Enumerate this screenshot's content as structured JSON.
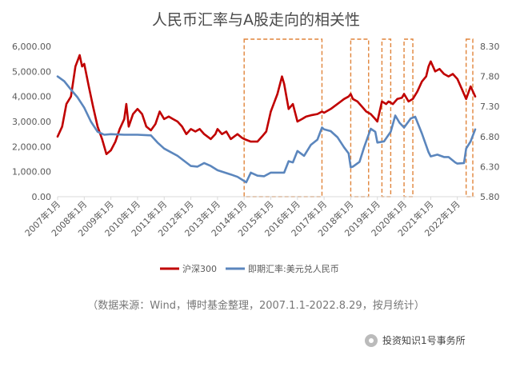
{
  "chart_data": {
    "type": "line",
    "title": "人民币汇率与A股走向的相关性",
    "source_note": "（数据来源：Wind，博时基金整理，2007.1.1-2022.8.29，按月统计）",
    "x_ticks": [
      "2007年1月",
      "2008年1月",
      "2009年1月",
      "2010年1月",
      "2011年1月",
      "2012年1月",
      "2013年1月",
      "2014年1月",
      "2015年1月",
      "2016年1月",
      "2017年1月",
      "2018年1月",
      "2019年1月",
      "2020年1月",
      "2021年1月",
      "2022年1月"
    ],
    "y_left": {
      "ylim": [
        0,
        6000
      ],
      "tick_labels": [
        "0.00",
        "1,000.00",
        "2,000.00",
        "3,000.00",
        "4,000.00",
        "5,000.00",
        "6,000.00"
      ]
    },
    "y_right": {
      "ylim": [
        5.8,
        8.3
      ],
      "tick_labels": [
        "5.80",
        "6.30",
        "6.80",
        "7.30",
        "7.80",
        "8.30"
      ]
    },
    "x_range": [
      2007.0,
      2022.67
    ],
    "series": [
      {
        "name": "沪深300",
        "axis": "left",
        "color": "#c00000",
        "points": [
          [
            2007.0,
            2400
          ],
          [
            2007.17,
            2800
          ],
          [
            2007.33,
            3700
          ],
          [
            2007.5,
            4000
          ],
          [
            2007.67,
            5200
          ],
          [
            2007.83,
            5650
          ],
          [
            2007.92,
            5200
          ],
          [
            2008.0,
            5300
          ],
          [
            2008.17,
            4400
          ],
          [
            2008.33,
            3600
          ],
          [
            2008.5,
            2800
          ],
          [
            2008.67,
            2300
          ],
          [
            2008.83,
            1700
          ],
          [
            2009.0,
            1850
          ],
          [
            2009.17,
            2200
          ],
          [
            2009.33,
            2700
          ],
          [
            2009.5,
            3100
          ],
          [
            2009.58,
            3700
          ],
          [
            2009.67,
            2800
          ],
          [
            2009.83,
            3300
          ],
          [
            2010.0,
            3500
          ],
          [
            2010.17,
            3300
          ],
          [
            2010.33,
            2800
          ],
          [
            2010.5,
            2650
          ],
          [
            2010.67,
            2900
          ],
          [
            2010.83,
            3400
          ],
          [
            2011.0,
            3100
          ],
          [
            2011.17,
            3200
          ],
          [
            2011.33,
            3100
          ],
          [
            2011.5,
            3000
          ],
          [
            2011.67,
            2800
          ],
          [
            2011.83,
            2500
          ],
          [
            2012.0,
            2700
          ],
          [
            2012.17,
            2600
          ],
          [
            2012.33,
            2700
          ],
          [
            2012.5,
            2500
          ],
          [
            2012.75,
            2300
          ],
          [
            2012.92,
            2500
          ],
          [
            2013.0,
            2700
          ],
          [
            2013.17,
            2500
          ],
          [
            2013.33,
            2600
          ],
          [
            2013.5,
            2300
          ],
          [
            2013.75,
            2500
          ],
          [
            2013.92,
            2350
          ],
          [
            2014.0,
            2300
          ],
          [
            2014.25,
            2200
          ],
          [
            2014.5,
            2200
          ],
          [
            2014.67,
            2400
          ],
          [
            2014.83,
            2600
          ],
          [
            2015.0,
            3400
          ],
          [
            2015.25,
            4100
          ],
          [
            2015.42,
            4800
          ],
          [
            2015.5,
            4500
          ],
          [
            2015.67,
            3500
          ],
          [
            2015.83,
            3700
          ],
          [
            2016.0,
            3000
          ],
          [
            2016.17,
            3100
          ],
          [
            2016.33,
            3200
          ],
          [
            2016.5,
            3250
          ],
          [
            2016.75,
            3300
          ],
          [
            2016.92,
            3400
          ],
          [
            2017.0,
            3350
          ],
          [
            2017.25,
            3500
          ],
          [
            2017.5,
            3700
          ],
          [
            2017.75,
            3900
          ],
          [
            2017.92,
            4000
          ],
          [
            2018.0,
            4100
          ],
          [
            2018.08,
            3900
          ],
          [
            2018.25,
            3800
          ],
          [
            2018.42,
            3600
          ],
          [
            2018.58,
            3400
          ],
          [
            2018.75,
            3300
          ],
          [
            2018.92,
            3100
          ],
          [
            2019.0,
            3000
          ],
          [
            2019.17,
            3800
          ],
          [
            2019.33,
            3700
          ],
          [
            2019.42,
            3800
          ],
          [
            2019.58,
            3700
          ],
          [
            2019.75,
            3900
          ],
          [
            2019.92,
            3950
          ],
          [
            2020.0,
            4100
          ],
          [
            2020.17,
            3800
          ],
          [
            2020.33,
            3900
          ],
          [
            2020.5,
            4200
          ],
          [
            2020.67,
            4600
          ],
          [
            2020.83,
            4800
          ],
          [
            2020.92,
            5200
          ],
          [
            2021.0,
            5400
          ],
          [
            2021.17,
            5000
          ],
          [
            2021.33,
            5100
          ],
          [
            2021.5,
            4900
          ],
          [
            2021.67,
            4800
          ],
          [
            2021.83,
            4900
          ],
          [
            2022.0,
            4700
          ],
          [
            2022.17,
            4300
          ],
          [
            2022.33,
            3900
          ],
          [
            2022.5,
            4400
          ],
          [
            2022.67,
            4000
          ]
        ]
      },
      {
        "name": "即期汇率:美元兑人民币",
        "axis": "right",
        "color": "#5b86bd",
        "points": [
          [
            2007.0,
            7.8
          ],
          [
            2007.25,
            7.72
          ],
          [
            2007.5,
            7.58
          ],
          [
            2007.75,
            7.45
          ],
          [
            2008.0,
            7.28
          ],
          [
            2008.25,
            7.05
          ],
          [
            2008.5,
            6.88
          ],
          [
            2008.75,
            6.83
          ],
          [
            2009.0,
            6.84
          ],
          [
            2009.5,
            6.83
          ],
          [
            2010.0,
            6.83
          ],
          [
            2010.5,
            6.82
          ],
          [
            2010.75,
            6.7
          ],
          [
            2011.0,
            6.6
          ],
          [
            2011.5,
            6.48
          ],
          [
            2012.0,
            6.31
          ],
          [
            2012.25,
            6.3
          ],
          [
            2012.5,
            6.36
          ],
          [
            2012.75,
            6.31
          ],
          [
            2013.0,
            6.24
          ],
          [
            2013.5,
            6.17
          ],
          [
            2013.75,
            6.13
          ],
          [
            2014.0,
            6.06
          ],
          [
            2014.08,
            6.04
          ],
          [
            2014.25,
            6.2
          ],
          [
            2014.5,
            6.15
          ],
          [
            2014.75,
            6.14
          ],
          [
            2015.0,
            6.2
          ],
          [
            2015.25,
            6.2
          ],
          [
            2015.5,
            6.2
          ],
          [
            2015.67,
            6.39
          ],
          [
            2015.83,
            6.37
          ],
          [
            2016.0,
            6.56
          ],
          [
            2016.25,
            6.48
          ],
          [
            2016.5,
            6.66
          ],
          [
            2016.75,
            6.75
          ],
          [
            2016.92,
            6.95
          ],
          [
            2017.0,
            6.92
          ],
          [
            2017.25,
            6.89
          ],
          [
            2017.5,
            6.79
          ],
          [
            2017.75,
            6.62
          ],
          [
            2017.92,
            6.52
          ],
          [
            2018.0,
            6.29
          ],
          [
            2018.08,
            6.3
          ],
          [
            2018.33,
            6.38
          ],
          [
            2018.5,
            6.62
          ],
          [
            2018.75,
            6.93
          ],
          [
            2018.92,
            6.88
          ],
          [
            2019.0,
            6.7
          ],
          [
            2019.25,
            6.72
          ],
          [
            2019.5,
            6.88
          ],
          [
            2019.67,
            7.15
          ],
          [
            2019.83,
            7.03
          ],
          [
            2020.0,
            6.95
          ],
          [
            2020.25,
            7.1
          ],
          [
            2020.42,
            7.13
          ],
          [
            2020.67,
            6.85
          ],
          [
            2020.92,
            6.54
          ],
          [
            2021.0,
            6.47
          ],
          [
            2021.25,
            6.5
          ],
          [
            2021.5,
            6.46
          ],
          [
            2021.67,
            6.46
          ],
          [
            2021.92,
            6.37
          ],
          [
            2022.0,
            6.35
          ],
          [
            2022.25,
            6.36
          ],
          [
            2022.33,
            6.6
          ],
          [
            2022.5,
            6.72
          ],
          [
            2022.67,
            6.92
          ]
        ]
      }
    ],
    "highlight_ranges": [
      [
        2014.0,
        2016.92
      ],
      [
        2018.0,
        2018.67
      ],
      [
        2019.17,
        2019.5
      ],
      [
        2020.0,
        2020.33
      ],
      [
        2022.33,
        2022.58
      ]
    ],
    "legend_position": "bottom",
    "grid": false
  },
  "watermark": "投资知识1号事务所"
}
